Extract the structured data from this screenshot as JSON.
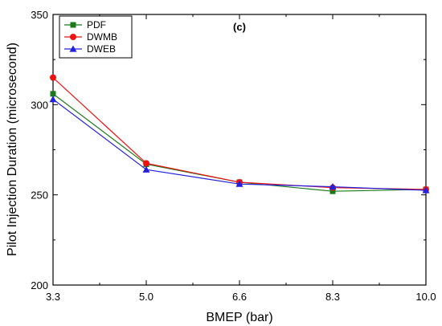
{
  "chart_data": {
    "type": "line",
    "panel_label": "(c)",
    "xlabel": "BMEP (bar)",
    "ylabel": "Pilot Injection Duration (microsecond)",
    "x": [
      3.3,
      5.0,
      6.6,
      8.3,
      10.0
    ],
    "x_tick_labels": [
      "3.3",
      "5.0",
      "6.6",
      "8.3",
      "10.0"
    ],
    "xlim": [
      3.3,
      10.0
    ],
    "ylim": [
      200,
      350
    ],
    "y_ticks": [
      200,
      250,
      300,
      350
    ],
    "grid": false,
    "legend_position": "top-left",
    "series": [
      {
        "name": "PDF",
        "color": "#1a7a1a",
        "marker": "square",
        "values": [
          306,
          267,
          257,
          252,
          253
        ]
      },
      {
        "name": "DWMB",
        "color": "#ee1111",
        "marker": "circle",
        "values": [
          315,
          267.5,
          257,
          254,
          253
        ]
      },
      {
        "name": "DWEB",
        "color": "#2222dd",
        "marker": "triangle",
        "values": [
          303,
          264,
          256,
          254.5,
          252.5
        ]
      }
    ]
  }
}
